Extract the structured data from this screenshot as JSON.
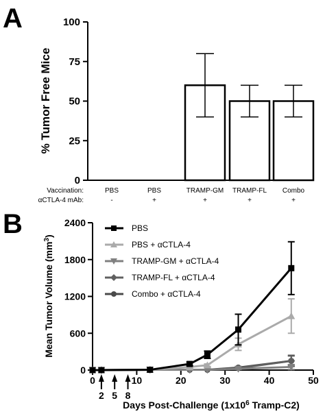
{
  "panel_a_label": "A",
  "panel_b_label": "B",
  "chart_data": [
    {
      "type": "bar",
      "ylabel": "% Tumor Free Mice",
      "ylim": [
        0,
        100
      ],
      "yticks": [
        "0",
        "25",
        "50",
        "75",
        "100"
      ],
      "ytick_values": [
        0,
        25,
        50,
        75,
        100
      ],
      "categories": [
        "PBS",
        "PBS",
        "TRAMP-GM",
        "TRAMP-FL",
        "Combo"
      ],
      "values": [
        0,
        0,
        60,
        50,
        50
      ],
      "errors": [
        0,
        0,
        20,
        10,
        10
      ],
      "row_labels": {
        "vaccination": "Vaccination:",
        "antibody": "αCTLA-4 mAb:"
      },
      "antibody": [
        "-",
        "+",
        "+",
        "+",
        "+"
      ]
    },
    {
      "type": "line",
      "xlabel_prefix": "Days Post-Challenge (1x10",
      "xlabel_sup": "6",
      "xlabel_suffix": " Tramp-C2)",
      "ylabel_prefix": "Mean Tumor Volume (mm",
      "ylabel_sup": "3",
      "ylabel_suffix": ")",
      "xlim": [
        0,
        50
      ],
      "ylim": [
        0,
        2400
      ],
      "xticks": [
        "0",
        "10",
        "20",
        "30",
        "40",
        "50"
      ],
      "xtick_values": [
        0,
        10,
        20,
        30,
        40,
        50
      ],
      "yticks": [
        "0",
        "600",
        "1200",
        "1800",
        "2400"
      ],
      "ytick_values": [
        0,
        600,
        1200,
        1800,
        2400
      ],
      "arrows": [
        {
          "day": 2,
          "label": "2"
        },
        {
          "day": 5,
          "label": "5"
        },
        {
          "day": 8,
          "label": "8"
        }
      ],
      "x": [
        0,
        2,
        13,
        22,
        26,
        33,
        45
      ],
      "series": [
        {
          "name": "PBS",
          "color": "#000000",
          "marker": "square",
          "values": [
            0,
            0,
            5,
            100,
            250,
            660,
            1660
          ],
          "errors": [
            0,
            0,
            0,
            30,
            60,
            250,
            430
          ]
        },
        {
          "name": "PBS + αCTLA-4",
          "color": "#aaaaaa",
          "marker": "triangle-up",
          "values": [
            0,
            0,
            5,
            50,
            80,
            420,
            880
          ],
          "errors": [
            0,
            0,
            0,
            20,
            20,
            100,
            280
          ]
        },
        {
          "name": "TRAMP-GM + αCTLA-4",
          "color": "#808080",
          "marker": "triangle-down",
          "values": [
            0,
            0,
            5,
            5,
            5,
            20,
            50
          ],
          "errors": [
            0,
            0,
            0,
            0,
            0,
            10,
            40
          ]
        },
        {
          "name": "TRAMP-FL + αCTLA-4",
          "color": "#606060",
          "marker": "diamond",
          "values": [
            0,
            0,
            5,
            5,
            5,
            30,
            150
          ],
          "errors": [
            0,
            0,
            0,
            0,
            0,
            15,
            80
          ]
        },
        {
          "name": "Combo + αCTLA-4",
          "color": "#4a4a4a",
          "marker": "circle",
          "values": [
            0,
            0,
            5,
            5,
            5,
            40,
            150
          ],
          "errors": [
            0,
            0,
            0,
            0,
            0,
            15,
            90
          ]
        }
      ]
    }
  ]
}
